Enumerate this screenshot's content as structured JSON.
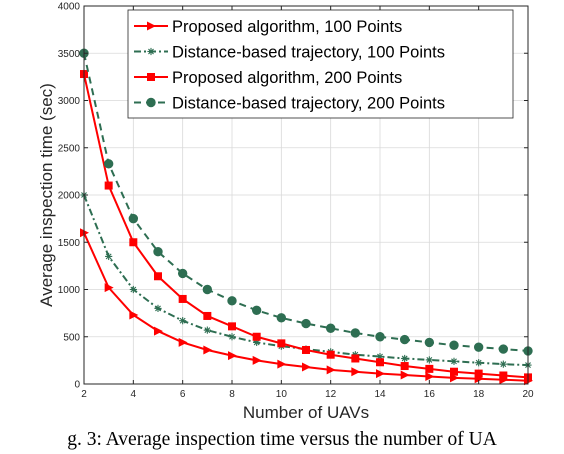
{
  "chart_data": {
    "type": "line",
    "xlabel": "Number of UAVs",
    "ylabel": "Average inspection time (sec)",
    "xlim": [
      2,
      20
    ],
    "ylim": [
      0,
      4000
    ],
    "x_ticks": [
      2,
      4,
      6,
      8,
      10,
      12,
      14,
      16,
      18,
      20
    ],
    "y_ticks": [
      0,
      500,
      1000,
      1500,
      2000,
      2500,
      3000,
      3500,
      4000
    ],
    "grid": true,
    "legend_position": "top-right",
    "x": [
      2,
      3,
      4,
      5,
      6,
      7,
      8,
      9,
      10,
      11,
      12,
      13,
      14,
      15,
      16,
      17,
      18,
      19,
      20
    ],
    "series": [
      {
        "name": "Proposed algorithm, 100 Points",
        "color": "#ff0000",
        "line": "solid",
        "marker": "triangle-right",
        "values": [
          1600,
          1020,
          730,
          560,
          440,
          360,
          300,
          250,
          210,
          180,
          150,
          130,
          110,
          95,
          80,
          65,
          55,
          45,
          35
        ]
      },
      {
        "name": "Distance-based trajectory, 100 Points",
        "color": "#2e6e52",
        "line": "dash-dot",
        "marker": "asterisk",
        "values": [
          2000,
          1350,
          1000,
          800,
          670,
          570,
          500,
          440,
          400,
          370,
          340,
          310,
          290,
          270,
          255,
          240,
          225,
          210,
          200
        ]
      },
      {
        "name": "Proposed algorithm, 200 Points",
        "color": "#ff0000",
        "line": "solid",
        "marker": "square",
        "values": [
          3280,
          2100,
          1500,
          1140,
          900,
          720,
          610,
          500,
          430,
          360,
          310,
          270,
          230,
          190,
          160,
          130,
          110,
          90,
          70
        ]
      },
      {
        "name": "Distance-based trajectory, 200 Points",
        "color": "#2e6e52",
        "line": "dashed",
        "marker": "circle",
        "values": [
          3500,
          2330,
          1750,
          1400,
          1170,
          1000,
          880,
          780,
          700,
          640,
          590,
          540,
          500,
          470,
          440,
          410,
          390,
          370,
          350
        ]
      }
    ]
  },
  "caption": "g. 3: Average inspection time versus the number of UA"
}
